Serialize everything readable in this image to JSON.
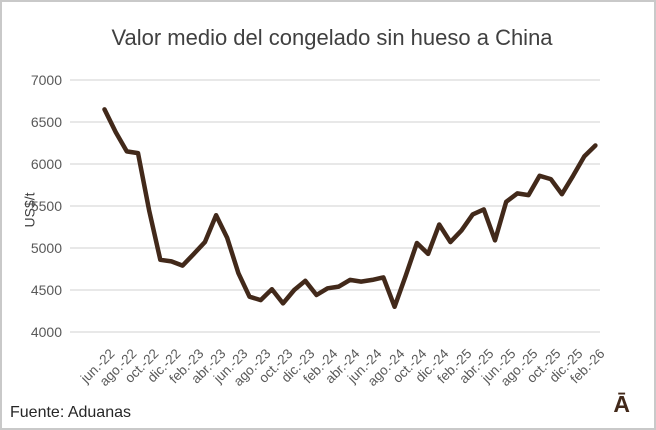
{
  "chart_data": {
    "type": "line",
    "title": "Valor medio del congelado sin hueso a China",
    "ylabel": "US$/t",
    "xlabel": "",
    "x": [
      "jun.-22",
      "jul.-22",
      "ago.-22",
      "sep.-22",
      "oct.-22",
      "nov.-22",
      "dic.-22",
      "ene.-23",
      "feb.-23",
      "mar.-23",
      "abr.-23",
      "may.-23",
      "jun.-23",
      "jul.-23",
      "ago.-23",
      "sep.-23",
      "oct.-23",
      "nov.-23",
      "dic.-23",
      "ene.-24",
      "feb.-24",
      "mar.-24",
      "abr.-24",
      "may.-24",
      "jun.-24",
      "jul.-24",
      "ago.-24",
      "sep.-24",
      "oct.-24",
      "nov.-24",
      "dic.-24",
      "ene.-25",
      "feb.-25",
      "mar.-25",
      "abr.-25",
      "may.-25",
      "jun.-25",
      "jul.-25",
      "ago.-25",
      "sep.-25",
      "oct.-25",
      "nov.-25",
      "dic.-25",
      "ene.-26",
      "feb.-26"
    ],
    "values": [
      6650,
      6380,
      6150,
      6130,
      5450,
      4860,
      4840,
      4790,
      4930,
      5070,
      5390,
      5120,
      4700,
      4420,
      4380,
      4510,
      4340,
      4500,
      4610,
      4440,
      4520,
      4540,
      4620,
      4600,
      4620,
      4650,
      4300,
      4670,
      5060,
      4930,
      5280,
      5070,
      5210,
      5400,
      5460,
      5090,
      5550,
      5650,
      5630,
      5860,
      5820,
      5640,
      5860,
      6090,
      6220
    ],
    "x_tick_labels": [
      "jun.-22",
      "ago.-22",
      "oct.-22",
      "dic.-22",
      "feb.-23",
      "abr.-23",
      "jun.-23",
      "ago.-23",
      "oct.-23",
      "dic.-23",
      "feb.-24",
      "abr.-24",
      "jun.-24",
      "ago.-24",
      "oct.-24",
      "dic.-24",
      "feb.-25",
      "abr.-25",
      "jun.-25",
      "ago.-25",
      "oct.-25",
      "dic.-25",
      "feb.-26"
    ],
    "x_tick_every": 2,
    "y_ticks": [
      4000,
      4500,
      5000,
      5500,
      6000,
      6500,
      7000
    ],
    "ylim": [
      4000,
      7000
    ],
    "grid": "horizontal",
    "legend": "none",
    "line_color": "#42291a",
    "grid_color": "#d9d9d9"
  },
  "footer": {
    "source": "Fuente: Aduanas",
    "logo": "Ā"
  }
}
